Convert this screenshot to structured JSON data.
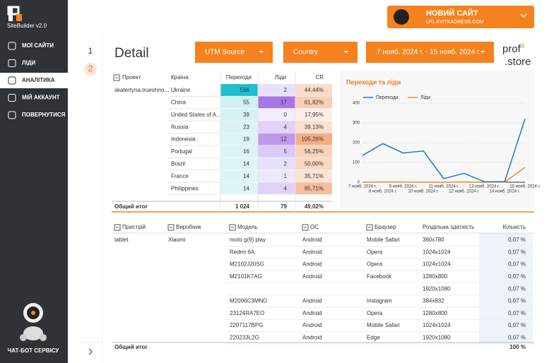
{
  "sidebar": {
    "logo": "SiteBuilder v2.0",
    "menu": [
      "МОЇ САЙТИ",
      "ЛІДИ",
      "АНАЛІТИКА",
      "МІЙ АККАУНТ",
      "ПОВЕРНУТИСЯ"
    ],
    "chatbot": "ЧАТ-БОТ СЕРВІСУ"
  },
  "pages": [
    "1",
    "2"
  ],
  "site": {
    "title": "НОВИЙ САЙТ",
    "domain": "LP1.KVITKADRESS.COM"
  },
  "header": {
    "title": "Detail",
    "filters": [
      "UTM Source",
      "Country",
      "7 нояб. 2024 г. - 15 нояб. 2024 г."
    ],
    "brand": [
      "prof",
      "it",
      ".store"
    ]
  },
  "country_table": {
    "headers": [
      "Проект",
      "Країна",
      "Переходи",
      "Ліди",
      "CR"
    ],
    "project": "skatertyna.trueshno...",
    "rows": [
      [
        "Ukraine",
        566,
        2,
        "44,44%"
      ],
      [
        "China",
        55,
        17,
        "61,82%"
      ],
      [
        "United States of A...",
        39,
        0,
        "17,95%"
      ],
      [
        "Russia",
        23,
        4,
        "39,13%"
      ],
      [
        "Indonesia",
        19,
        12,
        "105,26%"
      ],
      [
        "Portugal",
        16,
        5,
        "56,25%"
      ],
      [
        "Brazil",
        14,
        2,
        "50,00%"
      ],
      [
        "France",
        14,
        1,
        "35,71%"
      ],
      [
        "Philippines",
        14,
        4,
        "85,71%"
      ]
    ],
    "total": [
      "Общий итог",
      "1 024",
      "79",
      "49,02%"
    ]
  },
  "chart_data": {
    "type": "line",
    "title": "Переходи та ліди",
    "categories": [
      "7 нояб. 2024 г.",
      "8 нояб. 2024 г.",
      "9 нояб. 2024 г.",
      "10 нояб. 2024 г.",
      "11 нояб. 2024 г.",
      "12 нояб. 2024 г.",
      "13 нояб. 2024 г.",
      "14 нояб. 2024 г.",
      "15 нояб. 2024 г."
    ],
    "series": [
      {
        "name": "Переходи",
        "color": "#1f77d4",
        "values": [
          135,
          195,
          148,
          158,
          18,
          45,
          2,
          3,
          320
        ]
      },
      {
        "name": "Ліди",
        "color": "#f08a24",
        "values": [
          0,
          1,
          1,
          0,
          0,
          1,
          0,
          1,
          75
        ]
      }
    ],
    "ylim": [
      0,
      400
    ],
    "yticks": [
      0,
      100,
      200,
      300,
      400
    ],
    "grid": true,
    "legend": "top"
  },
  "device_table": {
    "headers": [
      "Пристрій",
      "Виробник",
      "Модель",
      "ОС",
      "Браузер",
      "Роздільна здатність",
      "Кількість"
    ],
    "rows": [
      [
        "tablet",
        "Xiaomi",
        "moto g(9) play",
        "Android",
        "Mobile Safari",
        "360x780",
        "0,07 %"
      ],
      [
        null,
        null,
        "Redmi 6A",
        "Android",
        "Opera",
        "1024x1024",
        "0,07 %"
      ],
      [
        null,
        null,
        "M2102J20SG",
        "Android",
        "Opera",
        "1024x1024",
        "0,07 %"
      ],
      [
        null,
        null,
        "M2101K7AG",
        "Android",
        "Facebook",
        "1280x800",
        "0,07 %"
      ],
      [
        null,
        null,
        null,
        null,
        null,
        "1920x1080",
        "0,07 %"
      ],
      [
        null,
        null,
        "M2006C3MNG",
        "Android",
        "Instagram",
        "384x832",
        "0,07 %"
      ],
      [
        null,
        null,
        "23124RA7EO",
        "Android",
        "Opera",
        "1280x800",
        "0,07 %"
      ],
      [
        null,
        null,
        "2207117BPG",
        "Android",
        "Mobile Safari",
        "1024x1024",
        "0,07 %"
      ],
      [
        null,
        null,
        "220233L2G",
        "Android",
        "Edge",
        "1920x1080",
        "0,07 %"
      ]
    ],
    "total": [
      "Общий итог",
      "100 %"
    ]
  }
}
